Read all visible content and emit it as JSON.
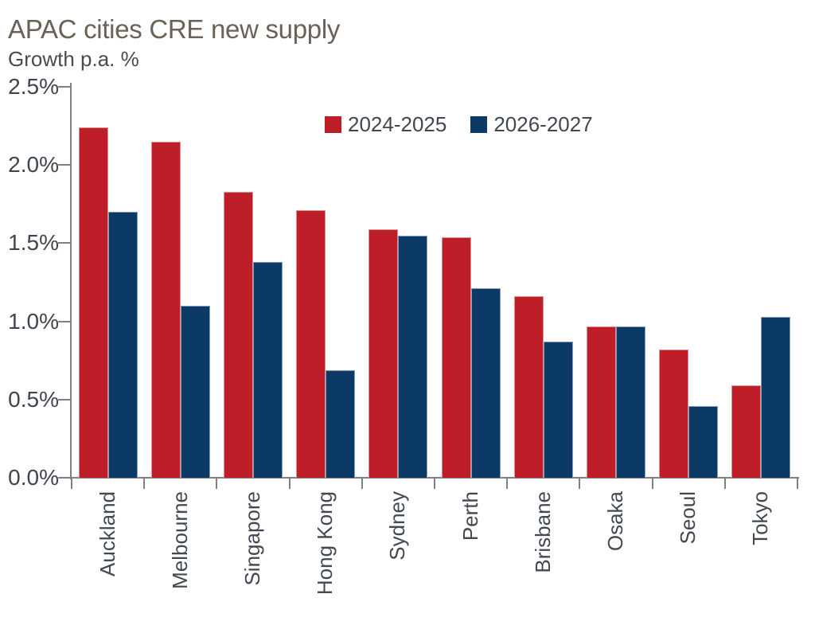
{
  "title": "APAC cities CRE new supply",
  "subtitle": "Growth p.a. %",
  "colors": {
    "red": "#be1e27",
    "navy": "#0b3a66",
    "axis_line": "#7f8285",
    "title_text": "#6a6157",
    "subtitle_text": "#4d4b48",
    "tick_text": "#3f454e",
    "label_text": "#424850"
  },
  "chart_data": {
    "type": "bar",
    "title": "APAC cities CRE new supply",
    "ylabel": "Growth p.a. %",
    "categories": [
      "Auckland",
      "Melbourne",
      "Singapore",
      "Hong Kong",
      "Sydney",
      "Perth",
      "Brisbane",
      "Osaka",
      "Seoul",
      "Tokyo"
    ],
    "series": [
      {
        "name": "2024-2025",
        "color_key": "red",
        "values": [
          2.24,
          2.15,
          1.83,
          1.71,
          1.59,
          1.54,
          1.16,
          0.97,
          0.82,
          0.59
        ]
      },
      {
        "name": "2026-2027",
        "color_key": "navy",
        "values": [
          1.7,
          1.1,
          1.38,
          0.69,
          1.55,
          1.21,
          0.87,
          0.97,
          0.46,
          1.03
        ]
      }
    ],
    "ylim": [
      0,
      2.5
    ],
    "ytick_step": 0.5,
    "ytick_labels": [
      "0.0%",
      "0.5%",
      "1.0%",
      "1.5%",
      "2.0%",
      "2.5%"
    ],
    "grid": false,
    "legend_position": "top-center-inside"
  }
}
